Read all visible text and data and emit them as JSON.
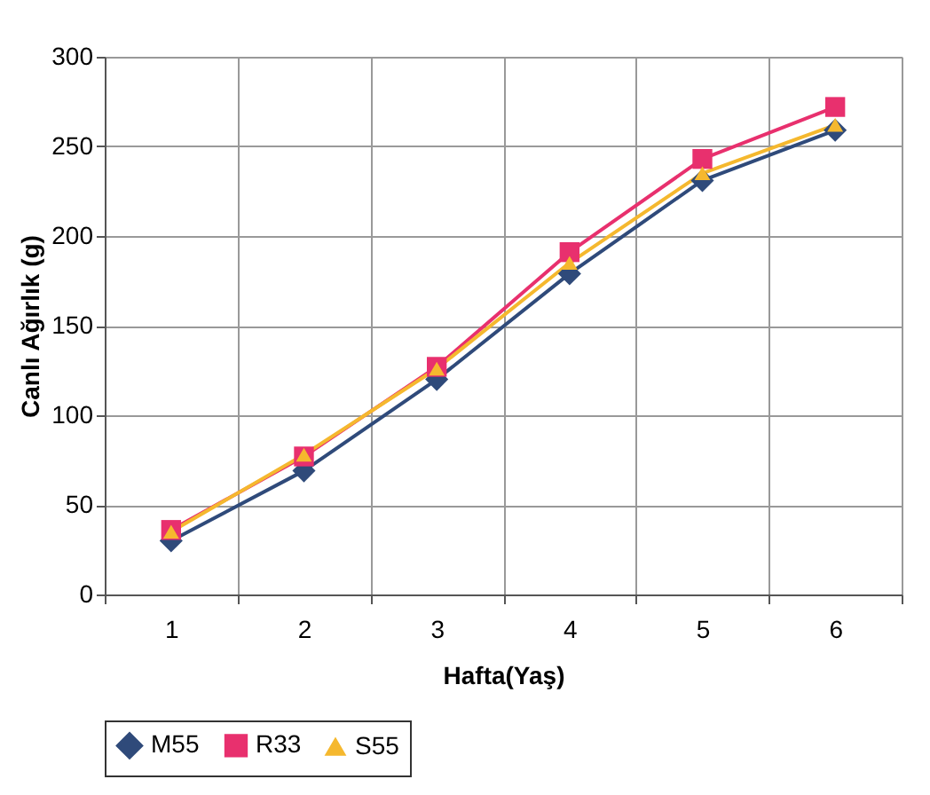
{
  "chart_data": {
    "type": "line",
    "xlabel": "Hafta(Yaş)",
    "ylabel": "Canlı Ağırlık (g)",
    "categories": [
      "1",
      "2",
      "3",
      "4",
      "5",
      "6"
    ],
    "series": [
      {
        "name": "M55",
        "color": "#2f4a7a",
        "marker": "diamond",
        "values": [
          30,
          69,
          120,
          179,
          231,
          259
        ]
      },
      {
        "name": "R33",
        "color": "#e8306e",
        "marker": "square",
        "values": [
          36,
          77,
          127,
          191,
          243,
          272
        ]
      },
      {
        "name": "S55",
        "color": "#f5b82e",
        "marker": "triangle",
        "values": [
          35,
          78,
          126,
          185,
          235,
          262
        ]
      }
    ],
    "ylim": [
      0,
      300
    ],
    "yticks": [
      0,
      50,
      100,
      150,
      200,
      250,
      300
    ],
    "grid": true,
    "legend": "bottom"
  }
}
